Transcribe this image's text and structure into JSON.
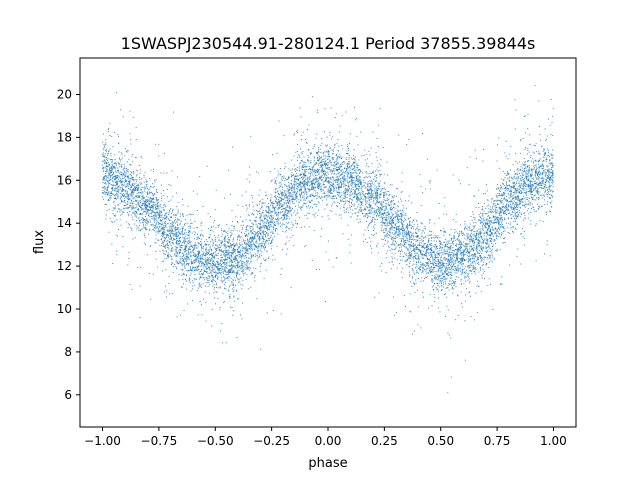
{
  "chart_data": {
    "type": "scatter",
    "title": "1SWASPJ230544.91-280124.1 Period 37855.39844s",
    "xlabel": "phase",
    "ylabel": "flux",
    "xlim": [
      -1.1,
      1.1
    ],
    "ylim": [
      4.5,
      21.7
    ],
    "xticks": [
      -1.0,
      -0.75,
      -0.5,
      -0.25,
      0.0,
      0.25,
      0.5,
      0.75,
      1.0
    ],
    "xtick_labels": [
      "−1.00",
      "−0.75",
      "−0.50",
      "−0.25",
      "0.00",
      "0.25",
      "0.50",
      "0.75",
      "1.00"
    ],
    "yticks": [
      6,
      8,
      10,
      12,
      14,
      16,
      18,
      20
    ],
    "ytick_labels": [
      "6",
      "8",
      "10",
      "12",
      "14",
      "16",
      "18",
      "20"
    ],
    "grid": false,
    "marker_color": "#1f77b4",
    "profile": {
      "description_phase": [
        -1.0,
        -0.9,
        -0.8,
        -0.7,
        -0.6,
        -0.5,
        -0.4,
        -0.3,
        -0.2,
        -0.1,
        0.0,
        0.1,
        0.2,
        0.3,
        0.4,
        0.5,
        0.6,
        0.7,
        0.8,
        0.9,
        1.0
      ],
      "mean_flux": [
        16.2,
        15.7,
        14.8,
        13.6,
        12.5,
        12.1,
        12.4,
        13.6,
        15.0,
        16.0,
        16.3,
        16.0,
        15.2,
        13.9,
        12.7,
        12.1,
        12.4,
        13.5,
        15.0,
        15.9,
        16.3
      ]
    }
  }
}
